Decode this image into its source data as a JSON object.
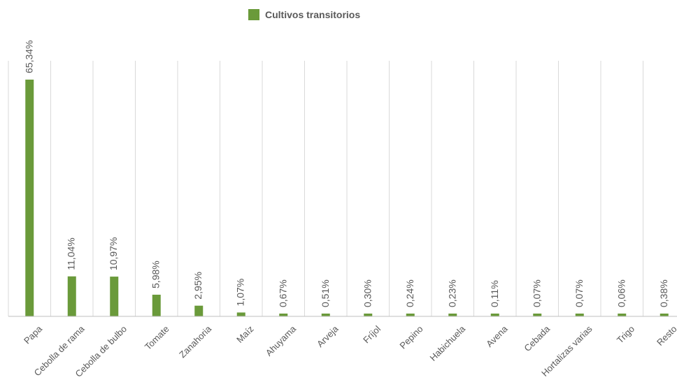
{
  "chart_data": {
    "type": "bar",
    "categories": [
      "Papa",
      "Cebolla de rama",
      "Cebolla de bulbo",
      "Tomate",
      "Zanahoria",
      "Maíz",
      "Ahuyama",
      "Arveja",
      "Fríjol",
      "Pepino",
      "Habichuela",
      "Avena",
      "Cebada",
      "Hortalizas varias",
      "Trigo",
      "Resto"
    ],
    "series": [
      {
        "name": "Cultivos transitorios",
        "values": [
          65.34,
          11.04,
          10.97,
          5.98,
          2.95,
          1.07,
          0.67,
          0.51,
          0.3,
          0.24,
          0.23,
          0.11,
          0.07,
          0.07,
          0.06,
          0.38
        ],
        "color": "#6a9a3a"
      }
    ],
    "data_labels": [
      "65,34%",
      "11,04%",
      "10,97%",
      "5,98%",
      "2,95%",
      "1,07%",
      "0,67%",
      "0,51%",
      "0,30%",
      "0,24%",
      "0,23%",
      "0,11%",
      "0,07%",
      "0,07%",
      "0,06%",
      "0,38%"
    ],
    "ylim": [
      0,
      65.34
    ],
    "grid": "vertical",
    "legend_position": "top-center",
    "gridline_color": "#d9d9d9",
    "axis_color": "#bfbfbf"
  }
}
